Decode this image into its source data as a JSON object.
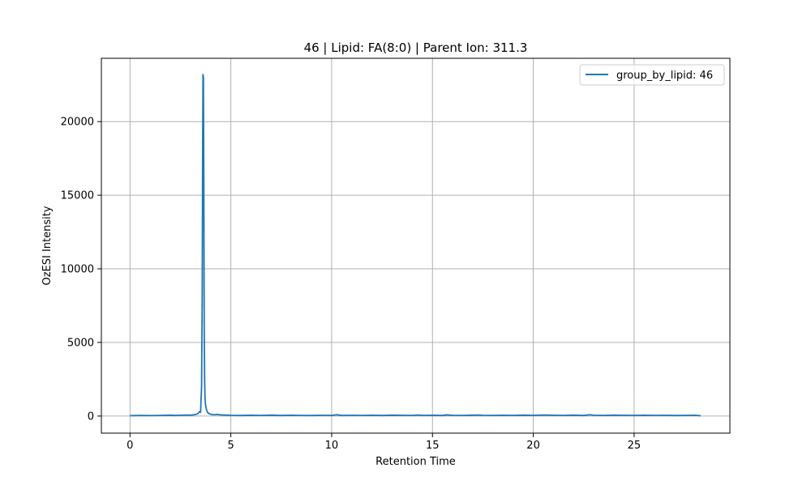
{
  "chart_data": {
    "type": "line",
    "title": "46 | Lipid: FA(8:0) | Parent Ion: 311.3",
    "xlabel": "Retention Time",
    "ylabel": "OzESI Intensity",
    "xlim": [
      -1.42,
      29.75
    ],
    "ylim": [
      -1160,
      24300
    ],
    "xticks": [
      0,
      5,
      10,
      15,
      20,
      25
    ],
    "yticks": [
      0,
      5000,
      10000,
      15000,
      20000
    ],
    "xtick_labels": [
      "0",
      "5",
      "10",
      "15",
      "20",
      "25"
    ],
    "ytick_labels": [
      "0",
      "5000",
      "10000",
      "15000",
      "20000"
    ],
    "grid": true,
    "legend_position": "top-right",
    "series": [
      {
        "name": "group_by_lipid: 46",
        "color": "#1f77b4",
        "x": [
          0,
          0.5,
          1.0,
          1.5,
          2.0,
          2.2,
          2.5,
          2.8,
          3.0,
          3.2,
          3.35,
          3.45,
          3.5,
          3.55,
          3.58,
          3.6,
          3.62,
          3.64,
          3.66,
          3.68,
          3.7,
          3.72,
          3.75,
          3.8,
          3.85,
          3.9,
          4.0,
          4.1,
          4.2,
          4.3,
          4.5,
          5.0,
          5.5,
          6.0,
          6.5,
          7.0,
          7.5,
          8.0,
          8.5,
          9.0,
          9.5,
          10.0,
          10.25,
          10.5,
          11.0,
          11.5,
          12.0,
          12.5,
          13.0,
          13.5,
          14.0,
          14.3,
          14.5,
          15.0,
          15.5,
          15.7,
          16.0,
          16.5,
          17.0,
          17.3,
          17.5,
          18.0,
          18.5,
          19.0,
          19.5,
          20.0,
          20.5,
          21.0,
          21.5,
          22.0,
          22.5,
          22.8,
          23.0,
          23.5,
          24.0,
          24.5,
          25.0,
          25.5,
          26.0,
          26.5,
          27.0,
          27.5,
          28.0,
          28.3
        ],
        "values": [
          30,
          40,
          35,
          45,
          60,
          40,
          55,
          70,
          60,
          90,
          150,
          300,
          250,
          2000,
          8000,
          17000,
          23200,
          23000,
          16000,
          6000,
          2500,
          1200,
          700,
          400,
          250,
          180,
          120,
          100,
          90,
          110,
          80,
          50,
          40,
          55,
          45,
          60,
          40,
          55,
          45,
          40,
          50,
          45,
          90,
          40,
          50,
          45,
          55,
          40,
          60,
          50,
          45,
          70,
          45,
          55,
          40,
          80,
          50,
          45,
          60,
          70,
          50,
          45,
          55,
          45,
          60,
          50,
          70,
          55,
          45,
          60,
          40,
          90,
          55,
          45,
          60,
          50,
          45,
          55,
          45,
          50,
          40,
          45,
          55,
          20
        ]
      }
    ]
  }
}
